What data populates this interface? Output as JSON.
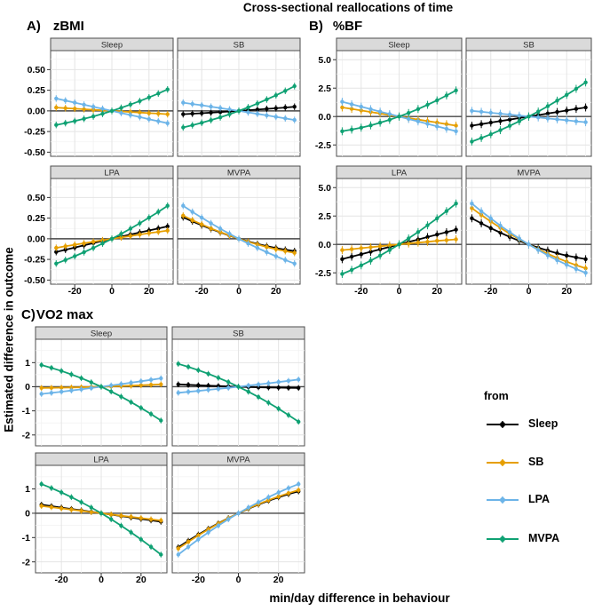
{
  "chart_data": {
    "type": "line",
    "title": "Cross-sectional reallocations of time",
    "xlabel": "min/day difference in behaviour",
    "ylabel": "Estimated difference in outcome",
    "x": [
      -30,
      -25,
      -20,
      -15,
      -10,
      -5,
      0,
      5,
      10,
      15,
      20,
      25,
      30
    ],
    "xlim": [
      -33,
      33
    ],
    "xticks": [
      -20,
      0,
      20
    ],
    "xtick_labels": [
      "-20",
      "0",
      "20"
    ],
    "xminor": [
      -30,
      -10,
      10,
      30
    ],
    "legend": {
      "title": "from",
      "entries": [
        "Sleep",
        "SB",
        "LPA",
        "MVPA"
      ]
    },
    "series_colors": {
      "Sleep": "#000000",
      "SB": "#E69F00",
      "LPA": "#6CB4E8",
      "MVPA": "#0FA173"
    },
    "panels": [
      {
        "id": "A",
        "label_prefix": "A)",
        "label": "zBMI",
        "ylim": [
          -0.55,
          0.73
        ],
        "ytick_values": [
          0.5,
          0.25,
          0,
          -0.25,
          -0.5
        ],
        "yticks": [
          "0.50",
          "0.25",
          "0.00",
          "-0.25",
          "-0.50"
        ],
        "yminor": [
          0.625,
          0.375,
          0.125,
          -0.125,
          -0.375
        ],
        "ci": 0.04,
        "facets": [
          {
            "name": "Sleep",
            "series": [
              {
                "from": "SB",
                "values": [
                  0.04,
                  0.033,
                  0.027,
                  0.02,
                  0.013,
                  0.007,
                  0,
                  -0.007,
                  -0.013,
                  -0.02,
                  -0.027,
                  -0.033,
                  -0.04
                ]
              },
              {
                "from": "LPA",
                "values": [
                  0.15,
                  0.125,
                  0.1,
                  0.075,
                  0.05,
                  0.025,
                  0,
                  -0.025,
                  -0.05,
                  -0.075,
                  -0.1,
                  -0.125,
                  -0.15
                ]
              },
              {
                "from": "MVPA",
                "values": [
                  -0.17,
                  -0.148,
                  -0.123,
                  -0.096,
                  -0.067,
                  -0.035,
                  0,
                  0.037,
                  0.077,
                  0.119,
                  0.163,
                  0.21,
                  0.26
                ]
              }
            ]
          },
          {
            "name": "SB",
            "series": [
              {
                "from": "Sleep",
                "values": [
                  -0.04,
                  -0.034,
                  -0.028,
                  -0.021,
                  -0.014,
                  -0.007,
                  0,
                  0.008,
                  0.016,
                  0.024,
                  0.032,
                  0.041,
                  0.05
                ]
              },
              {
                "from": "LPA",
                "values": [
                  0.1,
                  0.084,
                  0.068,
                  0.051,
                  0.034,
                  0.017,
                  0,
                  -0.018,
                  -0.036,
                  -0.054,
                  -0.072,
                  -0.091,
                  -0.11
                ]
              },
              {
                "from": "MVPA",
                "values": [
                  -0.2,
                  -0.174,
                  -0.144,
                  -0.112,
                  -0.078,
                  -0.04,
                  0,
                  0.043,
                  0.089,
                  0.138,
                  0.189,
                  0.243,
                  0.3
                ]
              }
            ]
          },
          {
            "name": "LPA",
            "series": [
              {
                "from": "Sleep",
                "values": [
                  -0.16,
                  -0.133,
                  -0.106,
                  -0.079,
                  -0.052,
                  -0.026,
                  0,
                  0.026,
                  0.051,
                  0.076,
                  0.101,
                  0.126,
                  0.15
                ]
              },
              {
                "from": "SB",
                "values": [
                  -0.11,
                  -0.091,
                  -0.072,
                  -0.054,
                  -0.036,
                  -0.018,
                  0,
                  0.017,
                  0.034,
                  0.051,
                  0.068,
                  0.084,
                  0.1
                ]
              },
              {
                "from": "MVPA",
                "values": [
                  -0.3,
                  -0.257,
                  -0.211,
                  -0.163,
                  -0.111,
                  -0.057,
                  0,
                  0.06,
                  0.122,
                  0.188,
                  0.256,
                  0.326,
                  0.4
                ]
              }
            ]
          },
          {
            "name": "MVPA",
            "series": [
              {
                "from": "Sleep",
                "values": [
                  0.26,
                  0.21,
                  0.163,
                  0.119,
                  0.077,
                  0.037,
                  0,
                  -0.033,
                  -0.062,
                  -0.089,
                  -0.112,
                  -0.133,
                  -0.15
                ]
              },
              {
                "from": "SB",
                "values": [
                  0.28,
                  0.226,
                  0.174,
                  0.126,
                  0.081,
                  0.039,
                  0,
                  -0.036,
                  -0.069,
                  -0.099,
                  -0.126,
                  -0.149,
                  -0.17
                ]
              },
              {
                "from": "LPA",
                "values": [
                  0.4,
                  0.326,
                  0.256,
                  0.188,
                  0.122,
                  0.06,
                  0,
                  -0.057,
                  -0.111,
                  -0.163,
                  -0.211,
                  -0.257,
                  -0.3
                ]
              }
            ]
          }
        ]
      },
      {
        "id": "B",
        "label_prefix": "B)",
        "label": "%BF",
        "ylim": [
          -3.5,
          5.8
        ],
        "ytick_values": [
          5,
          2.5,
          0,
          -2.5
        ],
        "yticks": [
          "5.0",
          "2.5",
          "0.0",
          "-2.5"
        ],
        "yminor": [
          3.75,
          1.25,
          -1.25
        ],
        "ci": 0.35,
        "facets": [
          {
            "name": "Sleep",
            "series": [
              {
                "from": "SB",
                "values": [
                  0.8,
                  0.67,
                  0.53,
                  0.4,
                  0.27,
                  0.13,
                  0,
                  -0.13,
                  -0.27,
                  -0.4,
                  -0.53,
                  -0.67,
                  -0.8
                ]
              },
              {
                "from": "LPA",
                "values": [
                  1.3,
                  1.08,
                  0.87,
                  0.65,
                  0.43,
                  0.22,
                  0,
                  -0.22,
                  -0.43,
                  -0.65,
                  -0.87,
                  -1.08,
                  -1.3
                ]
              },
              {
                "from": "MVPA",
                "values": [
                  -1.3,
                  -1.15,
                  -0.98,
                  -0.78,
                  -0.54,
                  -0.29,
                  0,
                  0.31,
                  0.66,
                  1.03,
                  1.42,
                  1.85,
                  2.3
                ]
              }
            ]
          },
          {
            "name": "SB",
            "series": [
              {
                "from": "Sleep",
                "values": [
                  -0.8,
                  -0.67,
                  -0.53,
                  -0.4,
                  -0.27,
                  -0.13,
                  0,
                  0.13,
                  0.27,
                  0.4,
                  0.53,
                  0.67,
                  0.8
                ]
              },
              {
                "from": "LPA",
                "values": [
                  0.5,
                  0.42,
                  0.33,
                  0.25,
                  0.17,
                  0.08,
                  0,
                  -0.08,
                  -0.17,
                  -0.25,
                  -0.33,
                  -0.42,
                  -0.5
                ]
              },
              {
                "from": "MVPA",
                "values": [
                  -2.2,
                  -1.89,
                  -1.56,
                  -1.2,
                  -0.82,
                  -0.42,
                  0,
                  0.44,
                  0.91,
                  1.4,
                  1.91,
                  2.44,
                  3.0
                ]
              }
            ]
          },
          {
            "name": "LPA",
            "series": [
              {
                "from": "Sleep",
                "values": [
                  -1.3,
                  -1.08,
                  -0.87,
                  -0.65,
                  -0.43,
                  -0.22,
                  0,
                  0.22,
                  0.43,
                  0.65,
                  0.87,
                  1.08,
                  1.3
                ]
              },
              {
                "from": "SB",
                "values": [
                  -0.5,
                  -0.42,
                  -0.33,
                  -0.25,
                  -0.16,
                  -0.08,
                  0,
                  0.08,
                  0.16,
                  0.23,
                  0.31,
                  0.38,
                  0.45
                ]
              },
              {
                "from": "MVPA",
                "values": [
                  -2.6,
                  -2.24,
                  -1.84,
                  -1.43,
                  -0.98,
                  -0.5,
                  0,
                  0.53,
                  1.09,
                  1.68,
                  2.29,
                  2.93,
                  3.6
                ]
              }
            ]
          },
          {
            "name": "MVPA",
            "series": [
              {
                "from": "Sleep",
                "values": [
                  2.3,
                  1.85,
                  1.42,
                  1.03,
                  0.66,
                  0.31,
                  0,
                  -0.29,
                  -0.54,
                  -0.78,
                  -0.98,
                  -1.15,
                  -1.3
                ]
              },
              {
                "from": "SB",
                "values": [
                  3.2,
                  2.59,
                  2.01,
                  1.46,
                  0.94,
                  0.46,
                  0,
                  -0.43,
                  -0.82,
                  -1.19,
                  -1.52,
                  -1.83,
                  -2.1
                ]
              },
              {
                "from": "LPA",
                "values": [
                  3.6,
                  2.92,
                  2.28,
                  1.66,
                  1.08,
                  0.52,
                  0,
                  -0.49,
                  -0.96,
                  -1.39,
                  -1.79,
                  -2.16,
                  -2.5
                ]
              }
            ]
          }
        ]
      },
      {
        "id": "C",
        "label_prefix": "C)",
        "label": "VO2 max",
        "ylim": [
          -2.45,
          1.97
        ],
        "ytick_values": [
          1,
          0,
          -1,
          -2
        ],
        "yticks": [
          "1",
          "0",
          "-1",
          "-2"
        ],
        "yminor": [
          1.5,
          0.5,
          -0.5,
          -1.5
        ],
        "ci": 0.12,
        "facets": [
          {
            "name": "Sleep",
            "series": [
              {
                "from": "SB",
                "values": [
                  -0.05,
                  -0.045,
                  -0.039,
                  -0.031,
                  -0.022,
                  -0.012,
                  0,
                  0.013,
                  0.028,
                  0.044,
                  0.061,
                  0.08,
                  0.1
                ]
              },
              {
                "from": "LPA",
                "values": [
                  -0.3,
                  -0.254,
                  -0.206,
                  -0.156,
                  -0.106,
                  -0.053,
                  0,
                  0.055,
                  0.111,
                  0.169,
                  0.228,
                  0.288,
                  0.35
                ]
              },
              {
                "from": "MVPA",
                "values": [
                  0.9,
                  0.785,
                  0.656,
                  0.513,
                  0.356,
                  0.185,
                  0,
                  -0.199,
                  -0.411,
                  -0.638,
                  -0.878,
                  -1.132,
                  -1.4
                ]
              }
            ]
          },
          {
            "name": "SB",
            "series": [
              {
                "from": "Sleep",
                "values": [
                  0.1,
                  0.08,
                  0.061,
                  0.044,
                  0.028,
                  0.013,
                  0,
                  -0.012,
                  -0.022,
                  -0.031,
                  -0.039,
                  -0.045,
                  -0.05
                ]
              },
              {
                "from": "LPA",
                "values": [
                  -0.25,
                  -0.212,
                  -0.172,
                  -0.131,
                  -0.089,
                  -0.045,
                  0,
                  0.047,
                  0.094,
                  0.144,
                  0.194,
                  0.247,
                  0.3
                ]
              },
              {
                "from": "MVPA",
                "values": [
                  0.95,
                  0.826,
                  0.689,
                  0.538,
                  0.372,
                  0.193,
                  0,
                  -0.207,
                  -0.428,
                  -0.663,
                  -0.911,
                  -1.174,
                  -1.45
                ]
              }
            ]
          },
          {
            "name": "LPA",
            "series": [
              {
                "from": "Sleep",
                "values": [
                  0.35,
                  0.292,
                  0.233,
                  0.175,
                  0.117,
                  0.058,
                  0,
                  -0.058,
                  -0.117,
                  -0.175,
                  -0.233,
                  -0.292,
                  -0.35
                ]
              },
              {
                "from": "SB",
                "values": [
                  0.3,
                  0.25,
                  0.2,
                  0.15,
                  0.1,
                  0.05,
                  0,
                  -0.05,
                  -0.1,
                  -0.15,
                  -0.2,
                  -0.25,
                  -0.3
                ]
              },
              {
                "from": "MVPA",
                "values": [
                  1.2,
                  1.034,
                  0.856,
                  0.663,
                  0.455,
                  0.235,
                  0,
                  -0.249,
                  -0.511,
                  -0.788,
                  -1.078,
                  -1.382,
                  -1.7
                ]
              }
            ]
          },
          {
            "name": "MVPA",
            "series": [
              {
                "from": "Sleep",
                "values": [
                  -1.4,
                  -1.132,
                  -0.878,
                  -0.638,
                  -0.411,
                  -0.199,
                  0,
                  0.185,
                  0.356,
                  0.513,
                  0.656,
                  0.785,
                  0.9
                ]
              },
              {
                "from": "SB",
                "values": [
                  -1.45,
                  -1.174,
                  -0.911,
                  -0.663,
                  -0.428,
                  -0.207,
                  0,
                  0.193,
                  0.372,
                  0.538,
                  0.689,
                  0.826,
                  0.95
                ]
              },
              {
                "from": "LPA",
                "values": [
                  -1.7,
                  -1.382,
                  -1.078,
                  -0.788,
                  -0.511,
                  -0.249,
                  0,
                  0.235,
                  0.455,
                  0.663,
                  0.856,
                  1.034,
                  1.2
                ]
              }
            ]
          }
        ]
      }
    ]
  }
}
